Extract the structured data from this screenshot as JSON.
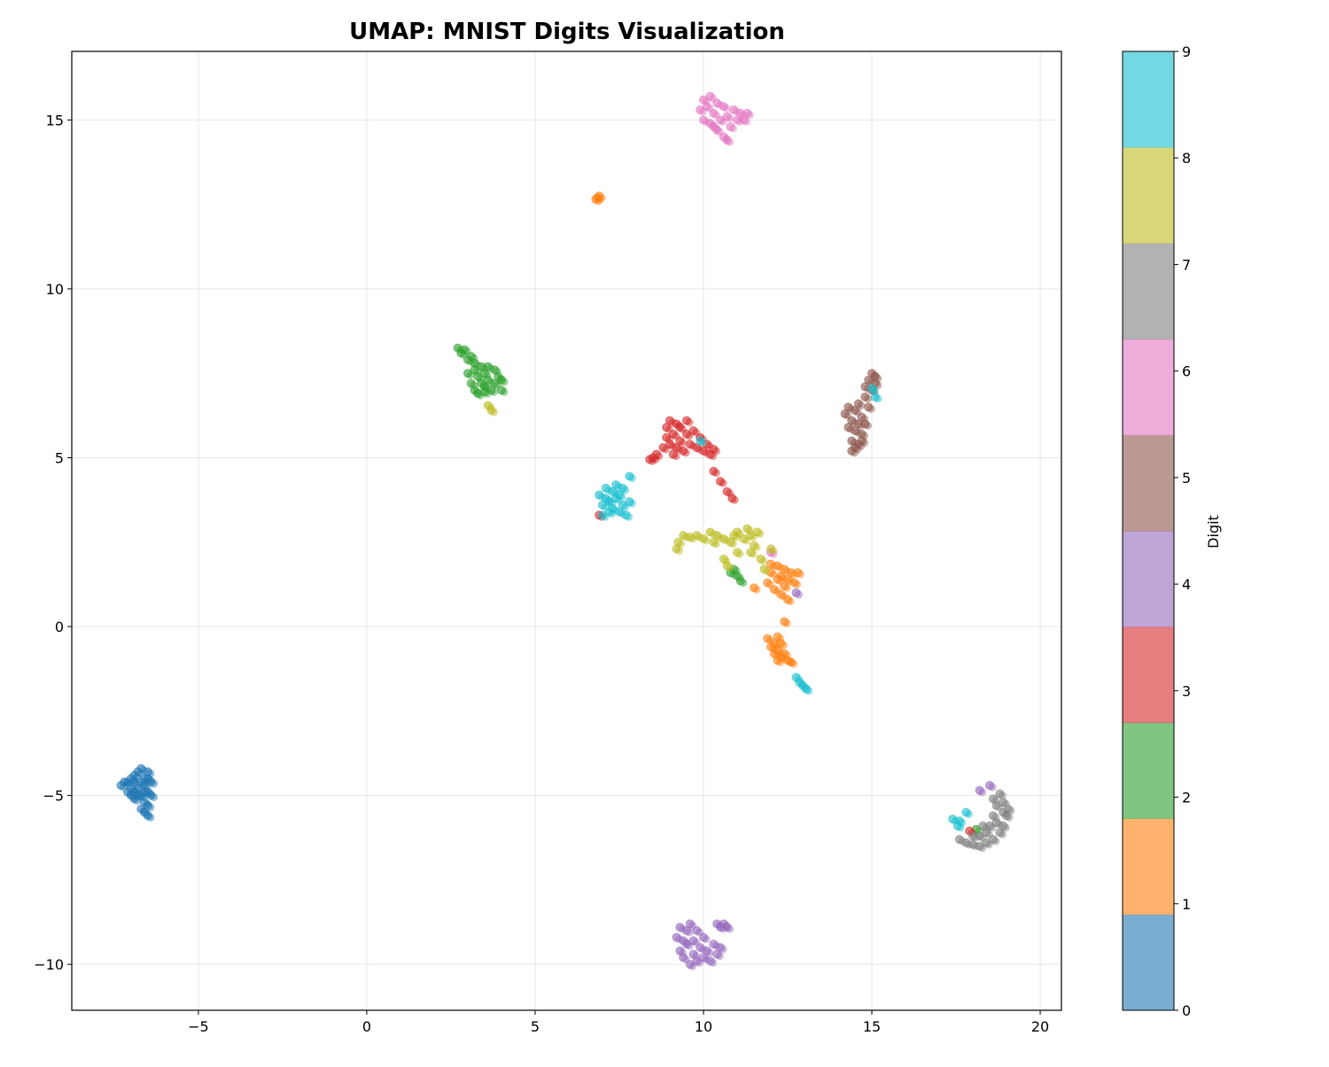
{
  "chart_data": {
    "type": "scatter",
    "title": "UMAP: MNIST Digits Visualization",
    "xlabel": "",
    "ylabel": "",
    "xlim": [
      -8.76,
      20.63
    ],
    "ylim": [
      -11.36,
      17.03
    ],
    "xticks": [
      -5,
      0,
      5,
      10,
      15,
      20
    ],
    "yticks": [
      -10,
      -5,
      0,
      5,
      10,
      15
    ],
    "xtick_labels": [
      "−5",
      "0",
      "5",
      "10",
      "15",
      "20"
    ],
    "ytick_labels": [
      "−10",
      "−5",
      "0",
      "5",
      "10",
      "15"
    ],
    "grid": true,
    "colormap": "tab10",
    "point_alpha": 0.6,
    "colorbar": {
      "label": "Digit",
      "range": [
        0,
        9
      ],
      "tick_labels": [
        "0",
        "1",
        "2",
        "3",
        "4",
        "5",
        "6",
        "7",
        "8",
        "9"
      ],
      "colors": [
        "#1f77b4",
        "#ff7f0e",
        "#2ca02c",
        "#d62728",
        "#9467bd",
        "#8c564b",
        "#e377c2",
        "#7f7f7f",
        "#bcbd22",
        "#17becf"
      ]
    },
    "series": [
      {
        "digit": 0,
        "points": [
          [
            -7.3,
            -4.7
          ],
          [
            -7.2,
            -4.6
          ],
          [
            -7.1,
            -4.9
          ],
          [
            -7.0,
            -4.5
          ],
          [
            -7.0,
            -4.8
          ],
          [
            -6.9,
            -4.6
          ],
          [
            -6.9,
            -5.1
          ],
          [
            -6.8,
            -4.3
          ],
          [
            -6.8,
            -4.8
          ],
          [
            -6.8,
            -5.0
          ],
          [
            -6.7,
            -4.2
          ],
          [
            -6.7,
            -5.0
          ],
          [
            -6.7,
            -5.4
          ],
          [
            -6.6,
            -4.5
          ],
          [
            -6.6,
            -4.7
          ],
          [
            -6.6,
            -5.2
          ],
          [
            -6.5,
            -4.3
          ],
          [
            -6.5,
            -4.9
          ],
          [
            -6.5,
            -5.3
          ],
          [
            -6.5,
            -5.6
          ],
          [
            -6.4,
            -4.6
          ],
          [
            -6.4,
            -5.0
          ],
          [
            -6.9,
            -4.4
          ],
          [
            -7.1,
            -4.6
          ],
          [
            -6.6,
            -4.9
          ],
          [
            -6.7,
            -4.6
          ],
          [
            -6.9,
            -4.9
          ],
          [
            -6.5,
            -4.5
          ],
          [
            -6.6,
            -5.5
          ],
          [
            -7.0,
            -5.0
          ]
        ]
      },
      {
        "digit": 1,
        "points": [
          [
            6.8,
            12.65
          ],
          [
            6.85,
            12.7
          ],
          [
            6.9,
            12.75
          ],
          [
            11.5,
            1.15
          ],
          [
            11.9,
            1.3
          ],
          [
            12.0,
            1.6
          ],
          [
            12.0,
            1.85
          ],
          [
            12.1,
            1.1
          ],
          [
            12.2,
            1.4
          ],
          [
            12.2,
            1.8
          ],
          [
            12.3,
            0.95
          ],
          [
            12.3,
            1.5
          ],
          [
            12.4,
            1.2
          ],
          [
            12.4,
            1.7
          ],
          [
            12.5,
            0.8
          ],
          [
            12.5,
            1.4
          ],
          [
            12.6,
            1.6
          ],
          [
            12.7,
            1.3
          ],
          [
            12.8,
            1.6
          ],
          [
            12.4,
            0.15
          ],
          [
            11.9,
            -0.35
          ],
          [
            12.0,
            -0.6
          ],
          [
            12.1,
            -0.8
          ],
          [
            12.2,
            -0.3
          ],
          [
            12.2,
            -0.7
          ],
          [
            12.3,
            -0.9
          ],
          [
            12.3,
            -0.5
          ],
          [
            12.4,
            -0.8
          ],
          [
            12.5,
            -1.0
          ],
          [
            12.6,
            -1.05
          ],
          [
            12.2,
            -1.0
          ],
          [
            12.1,
            -0.5
          ]
        ]
      },
      {
        "digit": 2,
        "points": [
          [
            2.7,
            8.25
          ],
          [
            2.8,
            8.1
          ],
          [
            2.9,
            8.2
          ],
          [
            3.0,
            7.9
          ],
          [
            3.0,
            7.5
          ],
          [
            3.1,
            7.2
          ],
          [
            3.1,
            8.0
          ],
          [
            3.2,
            7.8
          ],
          [
            3.2,
            7.0
          ],
          [
            3.3,
            7.4
          ],
          [
            3.3,
            6.9
          ],
          [
            3.4,
            7.7
          ],
          [
            3.4,
            7.2
          ],
          [
            3.5,
            7.5
          ],
          [
            3.5,
            6.95
          ],
          [
            3.6,
            7.3
          ],
          [
            3.6,
            7.7
          ],
          [
            3.7,
            7.0
          ],
          [
            3.8,
            7.6
          ],
          [
            3.8,
            7.2
          ],
          [
            3.9,
            7.4
          ],
          [
            4.0,
            7.3
          ],
          [
            4.0,
            7.0
          ],
          [
            3.2,
            7.6
          ],
          [
            3.5,
            7.1
          ],
          [
            10.8,
            1.6
          ],
          [
            10.9,
            1.7
          ],
          [
            11.0,
            1.5
          ],
          [
            11.1,
            1.35
          ],
          [
            18.1,
            -6.0
          ]
        ]
      },
      {
        "digit": 3,
        "points": [
          [
            8.4,
            4.95
          ],
          [
            8.5,
            5.0
          ],
          [
            8.6,
            5.1
          ],
          [
            8.8,
            5.3
          ],
          [
            8.9,
            5.6
          ],
          [
            8.9,
            5.9
          ],
          [
            9.0,
            5.4
          ],
          [
            9.0,
            6.1
          ],
          [
            9.1,
            5.7
          ],
          [
            9.2,
            5.3
          ],
          [
            9.2,
            6.0
          ],
          [
            9.3,
            5.5
          ],
          [
            9.3,
            5.9
          ],
          [
            9.4,
            5.2
          ],
          [
            9.5,
            5.7
          ],
          [
            9.5,
            6.1
          ],
          [
            9.6,
            5.4
          ],
          [
            9.7,
            5.8
          ],
          [
            9.8,
            5.3
          ],
          [
            9.9,
            5.6
          ],
          [
            10.0,
            5.2
          ],
          [
            10.1,
            5.4
          ],
          [
            10.2,
            5.1
          ],
          [
            10.3,
            5.25
          ],
          [
            9.1,
            5.1
          ],
          [
            10.3,
            4.6
          ],
          [
            10.5,
            4.3
          ],
          [
            10.7,
            4.0
          ],
          [
            10.85,
            3.8
          ],
          [
            6.9,
            3.3
          ],
          [
            17.9,
            -6.05
          ]
        ]
      },
      {
        "digit": 4,
        "points": [
          [
            9.2,
            -9.2
          ],
          [
            9.3,
            -8.9
          ],
          [
            9.3,
            -9.6
          ],
          [
            9.4,
            -9.8
          ],
          [
            9.5,
            -9.0
          ],
          [
            9.5,
            -9.4
          ],
          [
            9.6,
            -10.0
          ],
          [
            9.6,
            -8.8
          ],
          [
            9.7,
            -9.3
          ],
          [
            9.7,
            -9.7
          ],
          [
            9.8,
            -9.0
          ],
          [
            9.8,
            -9.9
          ],
          [
            9.9,
            -9.5
          ],
          [
            10.0,
            -9.2
          ],
          [
            10.0,
            -9.8
          ],
          [
            10.1,
            -9.6
          ],
          [
            10.2,
            -9.9
          ],
          [
            10.3,
            -9.4
          ],
          [
            10.4,
            -9.7
          ],
          [
            10.5,
            -9.5
          ],
          [
            10.5,
            -8.9
          ],
          [
            10.6,
            -8.8
          ],
          [
            10.7,
            -8.9
          ],
          [
            10.4,
            -8.8
          ],
          [
            9.4,
            -9.3
          ],
          [
            18.5,
            -4.7
          ],
          [
            18.2,
            -4.85
          ],
          [
            12.75,
            1.0
          ]
        ]
      },
      {
        "digit": 5,
        "points": [
          [
            14.2,
            6.3
          ],
          [
            14.3,
            5.9
          ],
          [
            14.3,
            6.5
          ],
          [
            14.4,
            5.5
          ],
          [
            14.4,
            6.1
          ],
          [
            14.4,
            5.2
          ],
          [
            14.5,
            5.8
          ],
          [
            14.5,
            6.4
          ],
          [
            14.6,
            5.4
          ],
          [
            14.6,
            6.0
          ],
          [
            14.6,
            6.6
          ],
          [
            14.7,
            5.7
          ],
          [
            14.7,
            6.2
          ],
          [
            14.8,
            6.0
          ],
          [
            14.8,
            6.8
          ],
          [
            14.8,
            7.1
          ],
          [
            14.9,
            7.3
          ],
          [
            14.9,
            6.5
          ],
          [
            15.0,
            7.5
          ],
          [
            15.0,
            7.0
          ],
          [
            15.1,
            7.4
          ],
          [
            15.1,
            7.2
          ],
          [
            14.5,
            5.3
          ],
          [
            14.7,
            5.5
          ]
        ]
      },
      {
        "digit": 6,
        "points": [
          [
            9.9,
            15.3
          ],
          [
            10.0,
            15.6
          ],
          [
            10.0,
            15.0
          ],
          [
            10.1,
            15.4
          ],
          [
            10.2,
            15.7
          ],
          [
            10.2,
            14.9
          ],
          [
            10.3,
            15.2
          ],
          [
            10.4,
            15.5
          ],
          [
            10.4,
            14.7
          ],
          [
            10.5,
            15.0
          ],
          [
            10.6,
            15.4
          ],
          [
            10.6,
            14.5
          ],
          [
            10.7,
            15.1
          ],
          [
            10.7,
            14.4
          ],
          [
            10.8,
            14.8
          ],
          [
            10.9,
            15.3
          ],
          [
            11.0,
            15.0
          ],
          [
            11.1,
            15.2
          ],
          [
            11.2,
            15.0
          ],
          [
            11.3,
            15.2
          ],
          [
            10.3,
            14.8
          ],
          [
            12.0,
            2.2
          ]
        ]
      },
      {
        "digit": 7,
        "points": [
          [
            17.6,
            -6.3
          ],
          [
            17.8,
            -6.4
          ],
          [
            18.0,
            -6.45
          ],
          [
            18.2,
            -6.5
          ],
          [
            18.4,
            -6.4
          ],
          [
            18.6,
            -6.3
          ],
          [
            18.8,
            -6.1
          ],
          [
            18.9,
            -5.9
          ],
          [
            19.0,
            -5.6
          ],
          [
            19.05,
            -5.4
          ],
          [
            18.9,
            -5.2
          ],
          [
            18.8,
            -4.95
          ],
          [
            18.7,
            -5.3
          ],
          [
            18.6,
            -5.6
          ],
          [
            18.5,
            -5.9
          ],
          [
            18.4,
            -6.1
          ],
          [
            18.2,
            -6.2
          ],
          [
            18.0,
            -6.2
          ],
          [
            18.3,
            -5.9
          ],
          [
            18.6,
            -5.1
          ],
          [
            18.9,
            -5.5
          ],
          [
            18.7,
            -5.8
          ]
        ]
      },
      {
        "digit": 8,
        "points": [
          [
            3.6,
            6.55
          ],
          [
            3.7,
            6.4
          ],
          [
            9.2,
            2.3
          ],
          [
            9.25,
            2.5
          ],
          [
            9.4,
            2.7
          ],
          [
            9.6,
            2.65
          ],
          [
            9.8,
            2.7
          ],
          [
            10.0,
            2.6
          ],
          [
            10.2,
            2.8
          ],
          [
            10.4,
            2.7
          ],
          [
            10.6,
            2.6
          ],
          [
            10.8,
            2.5
          ],
          [
            10.9,
            2.7
          ],
          [
            11.0,
            2.8
          ],
          [
            11.2,
            2.6
          ],
          [
            11.3,
            2.9
          ],
          [
            11.4,
            2.7
          ],
          [
            11.5,
            2.4
          ],
          [
            11.6,
            2.8
          ],
          [
            11.7,
            2.0
          ],
          [
            11.8,
            1.7
          ],
          [
            10.6,
            2.0
          ],
          [
            10.7,
            1.8
          ],
          [
            11.0,
            2.2
          ],
          [
            11.4,
            2.2
          ],
          [
            12.0,
            2.3
          ],
          [
            10.3,
            2.5
          ]
        ]
      },
      {
        "digit": 9,
        "points": [
          [
            6.9,
            3.9
          ],
          [
            7.0,
            3.6
          ],
          [
            7.0,
            3.3
          ],
          [
            7.1,
            4.1
          ],
          [
            7.1,
            3.8
          ],
          [
            7.2,
            3.4
          ],
          [
            7.2,
            3.7
          ],
          [
            7.3,
            4.0
          ],
          [
            7.3,
            3.5
          ],
          [
            7.4,
            3.8
          ],
          [
            7.4,
            4.2
          ],
          [
            7.5,
            3.4
          ],
          [
            7.5,
            3.9
          ],
          [
            7.6,
            3.6
          ],
          [
            7.6,
            4.1
          ],
          [
            7.7,
            3.3
          ],
          [
            7.8,
            3.7
          ],
          [
            7.8,
            4.45
          ],
          [
            12.75,
            -1.5
          ],
          [
            12.85,
            -1.65
          ],
          [
            12.95,
            -1.75
          ],
          [
            13.05,
            -1.85
          ],
          [
            17.4,
            -5.7
          ],
          [
            17.55,
            -5.9
          ],
          [
            17.6,
            -5.75
          ],
          [
            17.8,
            -5.5
          ],
          [
            15.0,
            7.05
          ],
          [
            15.1,
            6.8
          ],
          [
            9.9,
            5.5
          ]
        ]
      }
    ]
  }
}
